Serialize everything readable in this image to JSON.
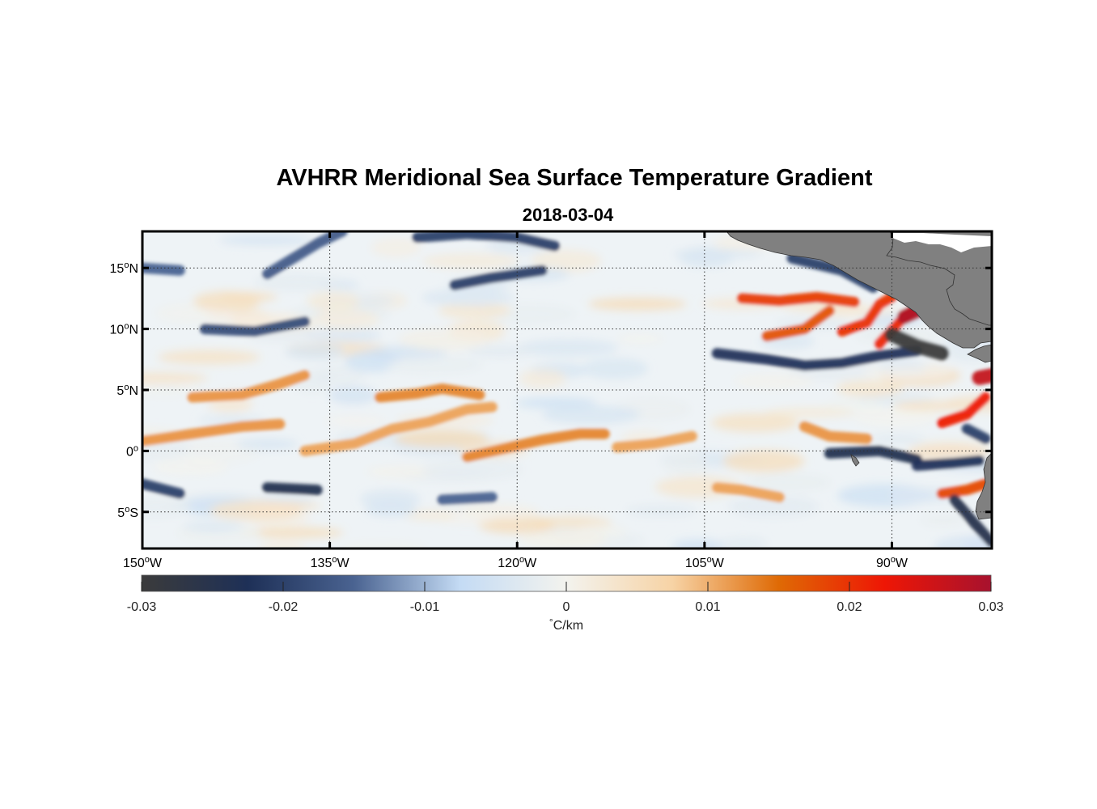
{
  "title": "AVHRR Meridional Sea Surface Temperature Gradient",
  "subtitle": "2018-03-04",
  "map": {
    "lon_range": [
      -150,
      -82
    ],
    "lat_range": [
      -8,
      18
    ],
    "lon_ticks": [
      {
        "value": -150,
        "deg": "150",
        "hemi": "W"
      },
      {
        "value": -135,
        "deg": "135",
        "hemi": "W"
      },
      {
        "value": -120,
        "deg": "120",
        "hemi": "W"
      },
      {
        "value": -105,
        "deg": "105",
        "hemi": "W"
      },
      {
        "value": -90,
        "deg": "90",
        "hemi": "W"
      }
    ],
    "lat_ticks": [
      {
        "value": 15,
        "deg": "15",
        "hemi": "N"
      },
      {
        "value": 10,
        "deg": "10",
        "hemi": "N"
      },
      {
        "value": 5,
        "deg": "5",
        "hemi": "N"
      },
      {
        "value": 0,
        "deg": "0",
        "hemi": ""
      },
      {
        "value": -5,
        "deg": "5",
        "hemi": "S"
      }
    ],
    "grid": "dotted",
    "land_color": "#808080",
    "features": [
      {
        "kind": "warm",
        "lon": [
          -150,
          -146,
          -142,
          -139
        ],
        "lat": [
          0.8,
          1.4,
          2.0,
          2.2
        ],
        "value": 0.012
      },
      {
        "kind": "warm",
        "lon": [
          -146,
          -142,
          -139,
          -137
        ],
        "lat": [
          4.4,
          4.6,
          5.5,
          6.2
        ],
        "value": 0.012
      },
      {
        "kind": "warm",
        "lon": [
          -137,
          -133,
          -130,
          -127,
          -124,
          -122
        ],
        "lat": [
          0.0,
          0.6,
          1.8,
          2.4,
          3.4,
          3.6
        ],
        "value": 0.011
      },
      {
        "kind": "warm",
        "lon": [
          -131,
          -128,
          -126,
          -123
        ],
        "lat": [
          4.4,
          4.7,
          5.1,
          4.6
        ],
        "value": 0.013
      },
      {
        "kind": "warm",
        "lon": [
          -124,
          -121,
          -118,
          -115,
          -113
        ],
        "lat": [
          -0.5,
          0.2,
          0.9,
          1.4,
          1.4
        ],
        "value": 0.013
      },
      {
        "kind": "warm",
        "lon": [
          -112,
          -109,
          -106
        ],
        "lat": [
          0.3,
          0.6,
          1.2
        ],
        "value": 0.011
      },
      {
        "kind": "warm",
        "lon": [
          -102,
          -99,
          -96,
          -93
        ],
        "lat": [
          12.5,
          12.3,
          12.6,
          12.2
        ],
        "value": 0.019
      },
      {
        "kind": "warm",
        "lon": [
          -100,
          -97,
          -95
        ],
        "lat": [
          9.4,
          10.0,
          11.5
        ],
        "value": 0.017
      },
      {
        "kind": "warm",
        "lon": [
          -94,
          -92,
          -91,
          -90
        ],
        "lat": [
          9.8,
          10.5,
          12.0,
          12.6
        ],
        "value": 0.02
      },
      {
        "kind": "warm",
        "lon": [
          -91,
          -89,
          -87
        ],
        "lat": [
          8.8,
          11.0,
          12.6
        ],
        "value": 0.021
      },
      {
        "kind": "hot",
        "lon": [
          -89,
          -87.5
        ],
        "lat": [
          11.0,
          11.7
        ],
        "value": 0.029
      },
      {
        "kind": "warm",
        "lon": [
          -86,
          -84,
          -82.5
        ],
        "lat": [
          2.3,
          3.0,
          4.4
        ],
        "value": 0.022
      },
      {
        "kind": "hot",
        "lon": [
          -83,
          -82
        ],
        "lat": [
          6.0,
          6.2
        ],
        "value": 0.027
      },
      {
        "kind": "warm",
        "lon": [
          -97,
          -95,
          -92
        ],
        "lat": [
          2.0,
          1.2,
          1.0
        ],
        "value": 0.012
      },
      {
        "kind": "warm",
        "lon": [
          -104,
          -102,
          -99
        ],
        "lat": [
          -3.0,
          -3.2,
          -3.8
        ],
        "value": 0.011
      },
      {
        "kind": "warm",
        "lon": [
          -86,
          -84,
          -82.5
        ],
        "lat": [
          -3.5,
          -3.2,
          -2.7
        ],
        "value": 0.018
      },
      {
        "kind": "cold",
        "lon": [
          -140,
          -136,
          -134
        ],
        "lat": [
          14.5,
          17.0,
          18.0
        ],
        "value": -0.016
      },
      {
        "kind": "cold",
        "lon": [
          -128,
          -124,
          -120,
          -117
        ],
        "lat": [
          17.5,
          17.8,
          17.5,
          16.8
        ],
        "value": -0.02
      },
      {
        "kind": "cold",
        "lon": [
          -125,
          -122,
          -118
        ],
        "lat": [
          13.6,
          14.2,
          14.8
        ],
        "value": -0.02
      },
      {
        "kind": "cold",
        "lon": [
          -145,
          -141,
          -137
        ],
        "lat": [
          10.0,
          9.8,
          10.6
        ],
        "value": -0.018
      },
      {
        "kind": "cold",
        "lon": [
          -150,
          -147
        ],
        "lat": [
          15.0,
          14.8
        ],
        "value": -0.015
      },
      {
        "kind": "cold",
        "lon": [
          -150,
          -147
        ],
        "lat": [
          -2.7,
          -3.5
        ],
        "value": -0.02
      },
      {
        "kind": "cold",
        "lon": [
          -140,
          -136
        ],
        "lat": [
          -3.0,
          -3.2
        ],
        "value": -0.024
      },
      {
        "kind": "cold",
        "lon": [
          -126,
          -122
        ],
        "lat": [
          -4.0,
          -3.8
        ],
        "value": -0.015
      },
      {
        "kind": "cold",
        "lon": [
          -104,
          -100,
          -97,
          -94,
          -91,
          -88
        ],
        "lat": [
          8.0,
          7.5,
          7.0,
          7.2,
          7.8,
          8.2
        ],
        "value": -0.022
      },
      {
        "kind": "cold",
        "lon": [
          -98,
          -94,
          -91.5
        ],
        "lat": [
          15.8,
          14.8,
          13.4
        ],
        "value": -0.02
      },
      {
        "kind": "dark",
        "lon": [
          -90,
          -88,
          -86
        ],
        "lat": [
          9.5,
          8.6,
          8.0
        ],
        "value": -0.03
      },
      {
        "kind": "cold",
        "lon": [
          -95,
          -91,
          -88
        ],
        "lat": [
          -0.2,
          0.0,
          -0.7
        ],
        "value": -0.024
      },
      {
        "kind": "cold",
        "lon": [
          -88,
          -85,
          -83
        ],
        "lat": [
          -1.2,
          -1.0,
          -0.8
        ],
        "value": -0.022
      },
      {
        "kind": "cold",
        "lon": [
          -85,
          -83.5,
          -82
        ],
        "lat": [
          -4.0,
          -5.8,
          -7.5
        ],
        "value": -0.025
      },
      {
        "kind": "cold",
        "lon": [
          -84,
          -82.5
        ],
        "lat": [
          1.8,
          1.0
        ],
        "value": -0.02
      }
    ]
  },
  "colorbar": {
    "range": [
      -0.03,
      0.03
    ],
    "ticks": [
      {
        "value": -0.03,
        "label": "-0.03"
      },
      {
        "value": -0.02,
        "label": "-0.02"
      },
      {
        "value": -0.01,
        "label": "-0.01"
      },
      {
        "value": 0,
        "label": "0"
      },
      {
        "value": 0.01,
        "label": "0.01"
      },
      {
        "value": 0.02,
        "label": "0.02"
      },
      {
        "value": 0.03,
        "label": "0.03"
      }
    ],
    "colors": [
      "#3b3b3b",
      "#1e3057",
      "#4a6391",
      "#c4dbf4",
      "#f3f3ee",
      "#f7d3a5",
      "#df6a05",
      "#ee1605",
      "#a7122e"
    ],
    "unit_symbol": "°",
    "unit_text": "C/km"
  }
}
